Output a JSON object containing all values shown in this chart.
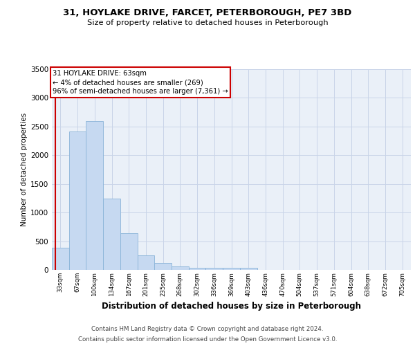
{
  "title_line1": "31, HOYLAKE DRIVE, FARCET, PETERBOROUGH, PE7 3BD",
  "title_line2": "Size of property relative to detached houses in Peterborough",
  "xlabel": "Distribution of detached houses by size in Peterborough",
  "ylabel": "Number of detached properties",
  "categories": [
    "33sqm",
    "67sqm",
    "100sqm",
    "134sqm",
    "167sqm",
    "201sqm",
    "235sqm",
    "268sqm",
    "302sqm",
    "336sqm",
    "369sqm",
    "403sqm",
    "436sqm",
    "470sqm",
    "504sqm",
    "537sqm",
    "571sqm",
    "604sqm",
    "638sqm",
    "672sqm",
    "705sqm"
  ],
  "values": [
    390,
    2410,
    2590,
    1240,
    640,
    255,
    115,
    55,
    35,
    35,
    35,
    35,
    0,
    0,
    0,
    0,
    0,
    0,
    0,
    0,
    0
  ],
  "bar_color": "#c6d9f1",
  "bar_edge_color": "#8ab4d8",
  "annotation_box_text": "31 HOYLAKE DRIVE: 63sqm\n← 4% of detached houses are smaller (269)\n96% of semi-detached houses are larger (7,361) →",
  "annotation_line_color": "#cc0000",
  "annotation_box_edge_color": "#cc0000",
  "ylim": [
    0,
    3500
  ],
  "yticks": [
    0,
    500,
    1000,
    1500,
    2000,
    2500,
    3000,
    3500
  ],
  "grid_color": "#c8d4e8",
  "bg_color": "#eaf0f8",
  "footer_line1": "Contains HM Land Registry data © Crown copyright and database right 2024.",
  "footer_line2": "Contains public sector information licensed under the Open Government Licence v3.0."
}
